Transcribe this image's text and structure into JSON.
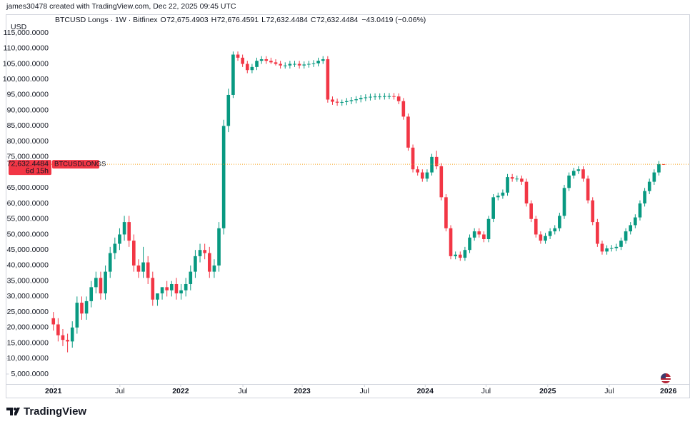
{
  "header": {
    "credit": "james30478 created with TradingView.com, Dec 22, 2025 09:45 UTC",
    "symbol": "BTCUSD Longs · 1W · Bitfinex",
    "open_label": "O",
    "open": "72,675.4903",
    "high_label": "H",
    "high": "72,676.4591",
    "low_label": "L",
    "low": "72,632.4484",
    "close_label": "C",
    "close": "72,632.4484",
    "change": "−43.0419 (−0.06%)"
  },
  "chart_data": {
    "type": "candlestick",
    "currency": "USD",
    "countdown": "6d 15h",
    "price_line_color": "#f7a21b",
    "series": [
      {
        "name": "BTCUSDLONGS",
        "color_up": "#089981",
        "color_down": "#f23645",
        "open": [
          23000,
          21000,
          17500,
          16000,
          15500,
          20000,
          28000,
          24500,
          28500,
          33000,
          36000,
          31000,
          38000,
          44000,
          47000,
          50000,
          54000,
          48000,
          40000,
          38000,
          41000,
          36000,
          29000,
          31000,
          33000,
          32000,
          34000,
          31000,
          32000,
          34000,
          38000,
          43000,
          45000,
          44000,
          38000,
          40000,
          52000,
          85000,
          95000,
          108000,
          107000,
          105000,
          103000,
          104000,
          106000,
          106500,
          106000,
          105500,
          105000,
          104500,
          104500,
          105000,
          105000,
          104500,
          104800,
          105000,
          105200,
          106000,
          106500,
          93500,
          92800,
          92500,
          92700,
          93000,
          93300,
          93600,
          94000,
          94200,
          94400,
          94500,
          94500,
          94600,
          94600,
          94500,
          93000,
          88000,
          78000,
          71000,
          70000,
          68000,
          70000,
          75000,
          72000,
          62000,
          52000,
          43000,
          43500,
          42500,
          45000,
          49000,
          51000,
          50000,
          48500,
          55000,
          62000,
          62500,
          63500,
          68500,
          68000,
          68000,
          67000,
          60000,
          55000,
          50000,
          48000,
          49500,
          51000,
          52000,
          56000,
          65000,
          69000,
          70500,
          71000,
          68000,
          61000,
          54000,
          47000,
          44500,
          45500,
          45600,
          46000,
          48000,
          51000,
          53000,
          55500,
          60000,
          64000,
          67000,
          70000,
          72675.4903
        ],
        "high": [
          25000,
          23000,
          19500,
          18000,
          22000,
          30000,
          30000,
          30000,
          35000,
          38000,
          38000,
          40000,
          46000,
          49000,
          52000,
          56000,
          56000,
          50000,
          42000,
          46000,
          43000,
          38000,
          31000,
          33000,
          35000,
          35000,
          36000,
          34000,
          36000,
          40000,
          45000,
          47000,
          47000,
          46000,
          42000,
          54000,
          87000,
          97000,
          109000,
          109000,
          108000,
          106000,
          105000,
          107000,
          107500,
          107500,
          107000,
          106500,
          106000,
          105500,
          106000,
          106000,
          106000,
          105800,
          106000,
          106200,
          107000,
          107500,
          107500,
          94500,
          93800,
          93500,
          94000,
          94300,
          94600,
          95000,
          95200,
          95400,
          95500,
          95500,
          95600,
          95600,
          95600,
          95500,
          94000,
          89000,
          79000,
          72000,
          71000,
          71000,
          76000,
          77000,
          73000,
          63000,
          53000,
          44500,
          44500,
          46000,
          50000,
          52000,
          52000,
          51000,
          56000,
          63000,
          63500,
          64500,
          69500,
          69500,
          69000,
          69000,
          68000,
          61000,
          56000,
          51000,
          50500,
          52000,
          53000,
          57000,
          66000,
          70000,
          71500,
          72000,
          72000,
          69000,
          62000,
          55000,
          48000,
          46500,
          46600,
          47000,
          49000,
          52000,
          54000,
          56500,
          61000,
          65000,
          68000,
          71000,
          73700,
          72676.4591
        ],
        "low": [
          19000,
          15500,
          14000,
          12000,
          13500,
          18000,
          22500,
          22500,
          26500,
          31000,
          29000,
          29000,
          36000,
          42000,
          45000,
          48000,
          46000,
          38000,
          36000,
          36000,
          34000,
          27000,
          27000,
          29000,
          30000,
          30000,
          29000,
          29000,
          30000,
          32000,
          36000,
          41000,
          42000,
          36000,
          36000,
          38000,
          50000,
          83000,
          94000,
          106000,
          104000,
          102000,
          102000,
          103000,
          105000,
          105000,
          105000,
          104500,
          103500,
          103500,
          103500,
          104000,
          103500,
          103500,
          103800,
          104000,
          104200,
          105000,
          92500,
          91800,
          91500,
          91500,
          91700,
          92000,
          92300,
          92600,
          93000,
          93200,
          93400,
          93500,
          93500,
          93600,
          93500,
          92000,
          87000,
          77000,
          70000,
          69000,
          67000,
          67000,
          69000,
          71000,
          61000,
          51000,
          42000,
          42000,
          41500,
          41500,
          44000,
          48000,
          49000,
          47500,
          47500,
          54000,
          61000,
          61500,
          62500,
          67000,
          67000,
          66000,
          59000,
          54000,
          49000,
          47000,
          47000,
          48500,
          50000,
          51000,
          55000,
          64000,
          68000,
          69500,
          67000,
          60000,
          53000,
          46000,
          43500,
          43500,
          44500,
          44600,
          45000,
          47000,
          50000,
          52000,
          54500,
          59000,
          63000,
          66000,
          69000,
          72632.4484
        ],
        "close": [
          21000,
          17500,
          16000,
          15500,
          20000,
          28000,
          24500,
          28500,
          33000,
          36000,
          31000,
          38000,
          44000,
          47000,
          50000,
          54000,
          48000,
          40000,
          38000,
          41000,
          36000,
          29000,
          31000,
          33000,
          32000,
          34000,
          31000,
          32000,
          34000,
          38000,
          43000,
          45000,
          44000,
          38000,
          40000,
          52000,
          85000,
          95000,
          108000,
          107000,
          105000,
          103000,
          104000,
          106000,
          106500,
          106000,
          105500,
          105000,
          104500,
          104500,
          105000,
          105000,
          104500,
          104800,
          105000,
          105200,
          106000,
          106500,
          93500,
          92800,
          92500,
          92700,
          93000,
          93300,
          93600,
          94000,
          94200,
          94400,
          94500,
          94500,
          94600,
          94600,
          94500,
          93000,
          88000,
          78000,
          71000,
          70000,
          68000,
          70000,
          75000,
          72000,
          62000,
          52000,
          43000,
          43500,
          42500,
          45000,
          49000,
          51000,
          50000,
          48500,
          55000,
          62000,
          62500,
          63500,
          68500,
          68000,
          68000,
          67000,
          60000,
          55000,
          50000,
          48000,
          49500,
          51000,
          52000,
          56000,
          65000,
          69000,
          70500,
          71000,
          68000,
          61000,
          54000,
          47000,
          44500,
          45500,
          45600,
          46000,
          48000,
          51000,
          53000,
          55500,
          60000,
          64000,
          67000,
          70000,
          72675.4903,
          72632.4484
        ]
      }
    ],
    "ylim": [
      0,
      118700
    ],
    "yticks": [
      {
        "value": 5000,
        "label": "5,000.0000"
      },
      {
        "value": 10000,
        "label": "10,000.0000"
      },
      {
        "value": 15000,
        "label": "15,000.0000"
      },
      {
        "value": 20000,
        "label": "20,000.0000"
      },
      {
        "value": 25000,
        "label": "25,000.0000"
      },
      {
        "value": 30000,
        "label": "30,000.0000"
      },
      {
        "value": 35000,
        "label": "35,000.0000"
      },
      {
        "value": 40000,
        "label": "40,000.0000"
      },
      {
        "value": 45000,
        "label": "45,000.0000"
      },
      {
        "value": 50000,
        "label": "50,000.0000"
      },
      {
        "value": 55000,
        "label": "55,000.0000"
      },
      {
        "value": 60000,
        "label": "60,000.0000"
      },
      {
        "value": 65000,
        "label": "65,000.0000"
      },
      {
        "value": 75000,
        "label": "75,000.0000"
      },
      {
        "value": 80000,
        "label": "80,000.0000"
      },
      {
        "value": 85000,
        "label": "85,000.0000"
      },
      {
        "value": 90000,
        "label": "90,000.0000"
      },
      {
        "value": 95000,
        "label": "95,000.0000"
      },
      {
        "value": 100000,
        "label": "100,000.0000"
      },
      {
        "value": 105000,
        "label": "105,000.0000"
      },
      {
        "value": 110000,
        "label": "110,000.0000"
      },
      {
        "value": 115000,
        "label": "115,000.0000"
      }
    ],
    "xlim": [
      -10,
      134.5
    ],
    "xticks": [
      {
        "value": 0,
        "label": "2021"
      },
      {
        "value": 14.06,
        "label": "Jul"
      },
      {
        "value": 26.9,
        "label": "2022"
      },
      {
        "value": 40.06,
        "label": "Jul"
      },
      {
        "value": 52.6,
        "label": "2023"
      },
      {
        "value": 65.76,
        "label": "Jul"
      },
      {
        "value": 78.6,
        "label": "2024"
      },
      {
        "value": 91.46,
        "label": "Jul"
      },
      {
        "value": 104.5,
        "label": "2025"
      },
      {
        "value": 117.5,
        "label": "Jul"
      },
      {
        "value": 130,
        "label": "2026"
      }
    ]
  },
  "footer": {
    "brand": "TradingView"
  }
}
